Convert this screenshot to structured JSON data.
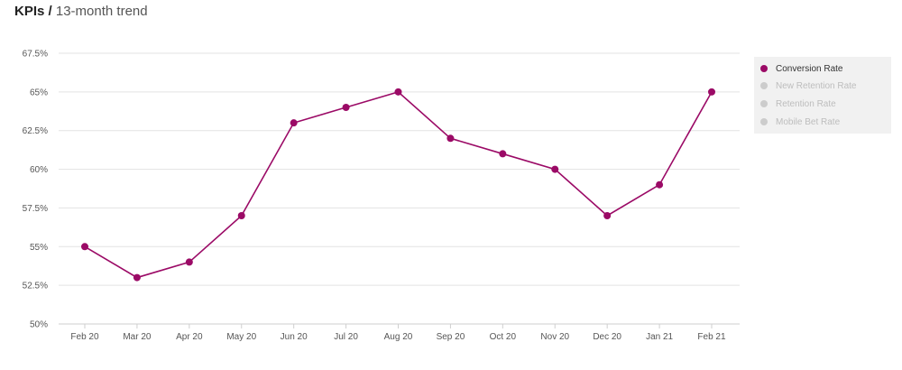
{
  "header": {
    "title_strong": "KPIs",
    "separator": " / ",
    "title_light": "13-month trend"
  },
  "legend": {
    "items": [
      {
        "label": "Conversion Rate",
        "active": true,
        "color": "#9b0a66"
      },
      {
        "label": "New Retention Rate",
        "active": false,
        "color": "#cccccc"
      },
      {
        "label": "Retention Rate",
        "active": false,
        "color": "#cccccc"
      },
      {
        "label": "Mobile Bet Rate",
        "active": false,
        "color": "#cccccc"
      }
    ]
  },
  "colors": {
    "series": "#9b0a66",
    "grid": "#e3e3e3",
    "axis": "#cfcfcf"
  },
  "chart_data": {
    "type": "line",
    "title": "",
    "xlabel": "",
    "ylabel": "",
    "categories": [
      "Feb 20",
      "Mar 20",
      "Apr 20",
      "May 20",
      "Jun 20",
      "Jul 20",
      "Aug 20",
      "Sep 20",
      "Oct 20",
      "Nov 20",
      "Dec 20",
      "Jan 21",
      "Feb 21"
    ],
    "yticks": [
      50,
      52.5,
      55,
      57.5,
      60,
      62.5,
      65,
      67.5
    ],
    "ytick_labels": [
      "50%",
      "52.5%",
      "55%",
      "57.5%",
      "60%",
      "62.5%",
      "65%",
      "67.5%"
    ],
    "ylim": [
      50,
      67.5
    ],
    "grid": true,
    "legend_position": "top-right",
    "series": [
      {
        "name": "Conversion Rate",
        "values": [
          55,
          53,
          54,
          57,
          63,
          64,
          65,
          62,
          61,
          60,
          57,
          59,
          65
        ]
      }
    ]
  }
}
